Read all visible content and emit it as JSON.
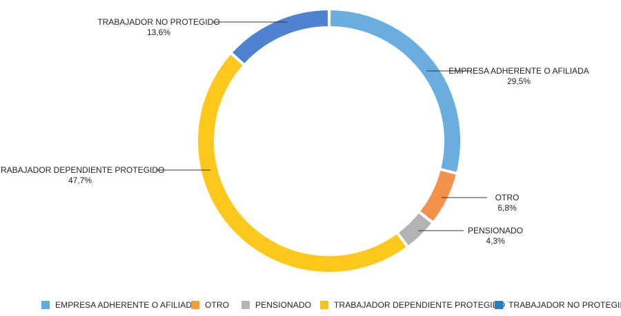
{
  "chart_data": {
    "type": "donut",
    "slices": [
      {
        "name": "EMPRESA ADHERENTE O AFILIADA",
        "value": 29.5,
        "label": "29,5%",
        "color": "#6aaee0",
        "legend_color": "#5dade2"
      },
      {
        "name": "OTRO",
        "value": 6.8,
        "label": "6,8%",
        "color": "#f4914a",
        "legend_color": "#f39c34"
      },
      {
        "name": "PENSIONADO",
        "value": 4.3,
        "label": "4,3%",
        "color": "#b3b3b3",
        "legend_color": "#b5b5b5"
      },
      {
        "name": "TRABAJADOR DEPENDIENTE PROTEGIDO",
        "value": 47.7,
        "label": "47,7%",
        "color": "#fcc81c",
        "legend_color": "#f7c21a"
      },
      {
        "name": "TRABAJADOR NO PROTEGIDO",
        "value": 13.6,
        "label": "13,6%",
        "color": "#4f82d1",
        "legend_color": "#1f7fc4"
      }
    ],
    "legend_position": "bottom"
  }
}
